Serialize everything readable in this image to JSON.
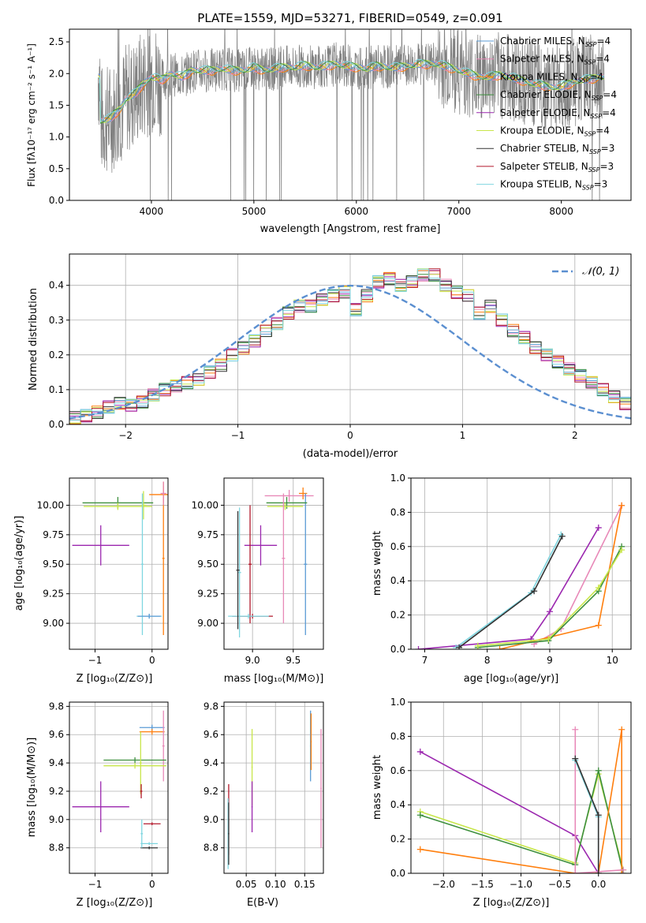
{
  "colors": {
    "chabrier_miles": "#5b9bd5",
    "salpeter_miles": "#e889b8",
    "kroupa_miles": "#ff7f0e",
    "chabrier_elodie": "#3d8f3d",
    "salpeter_elodie": "#9b27af",
    "kroupa_elodie": "#c8e64a",
    "chabrier_stelib": "#333333",
    "salpeter_stelib": "#b2182b",
    "kroupa_stelib": "#7fd6e0",
    "data": "#808080",
    "normal": "#5b8fd0",
    "grid": "#b0b0b0"
  },
  "chart_data": [
    {
      "id": "spectrum",
      "type": "line",
      "title": "PLATE=1559, MJD=53271, FIBERID=0549, z=0.091",
      "xlabel": "wavelength [Angstrom, rest frame]",
      "ylabel": "Flux [fλ10⁻¹⁷ erg cm⁻² s⁻¹ A⁻¹]",
      "xlim": [
        3200,
        8680
      ],
      "ylim": [
        0,
        2.7
      ],
      "xticks": [
        4000,
        5000,
        6000,
        7000,
        8000
      ],
      "yticks": [
        0.0,
        0.5,
        1.0,
        1.5,
        2.0,
        2.5
      ],
      "grid": false,
      "legend_position": "right",
      "legend": [
        {
          "label": "Chabrier MILES, N",
          "sub": "SSP",
          "eq": "=4",
          "color_key": "chabrier_miles"
        },
        {
          "label": "Salpeter MILES, N",
          "sub": "SSP",
          "eq": "=4",
          "color_key": "salpeter_miles"
        },
        {
          "label": "Kroupa MILES, N",
          "sub": "SSP",
          "eq": "=4",
          "color_key": "kroupa_miles"
        },
        {
          "label": "Chabrier ELODIE, N",
          "sub": "SSP",
          "eq": "=4",
          "color_key": "chabrier_elodie"
        },
        {
          "label": "Salpeter ELODIE, N",
          "sub": "SSP",
          "eq": "=4",
          "color_key": "salpeter_elodie"
        },
        {
          "label": "Kroupa ELODIE, N",
          "sub": "SSP",
          "eq": "=4",
          "color_key": "kroupa_elodie"
        },
        {
          "label": "Chabrier STELIB, N",
          "sub": "SSP",
          "eq": "=3",
          "color_key": "chabrier_stelib"
        },
        {
          "label": "Salpeter STELIB, N",
          "sub": "SSP",
          "eq": "=3",
          "color_key": "salpeter_stelib"
        },
        {
          "label": "Kroupa STELIB, N",
          "sub": "SSP",
          "eq": "=3",
          "color_key": "kroupa_stelib"
        }
      ],
      "model_continuum": [
        [
          3500,
          1.25
        ],
        [
          3600,
          1.3
        ],
        [
          3700,
          1.45
        ],
        [
          3750,
          1.6
        ],
        [
          3850,
          1.7
        ],
        [
          3900,
          1.8
        ],
        [
          4000,
          1.95
        ],
        [
          4100,
          1.9
        ],
        [
          4200,
          2.0
        ],
        [
          4300,
          1.95
        ],
        [
          4400,
          2.05
        ],
        [
          4500,
          2.05
        ],
        [
          4600,
          2.05
        ],
        [
          4700,
          2.08
        ],
        [
          4800,
          2.05
        ],
        [
          4900,
          2.05
        ],
        [
          5000,
          2.1
        ],
        [
          5100,
          2.05
        ],
        [
          5200,
          2.08
        ],
        [
          5300,
          2.1
        ],
        [
          5400,
          2.1
        ],
        [
          5500,
          2.13
        ],
        [
          5600,
          2.1
        ],
        [
          5700,
          2.12
        ],
        [
          5800,
          2.15
        ],
        [
          5900,
          2.12
        ],
        [
          6000,
          2.1
        ],
        [
          6100,
          2.08
        ],
        [
          6200,
          2.12
        ],
        [
          6300,
          2.1
        ],
        [
          6400,
          2.1
        ],
        [
          6500,
          2.12
        ],
        [
          6600,
          2.15
        ],
        [
          6700,
          2.15
        ],
        [
          6800,
          2.15
        ],
        [
          6900,
          2.1
        ],
        [
          7000,
          2.05
        ],
        [
          7100,
          2.0
        ],
        [
          7200,
          1.95
        ],
        [
          7300,
          1.95
        ],
        [
          7400,
          1.98
        ],
        [
          7500,
          1.95
        ],
        [
          7600,
          1.9
        ],
        [
          7700,
          1.85
        ],
        [
          7800,
          1.82
        ],
        [
          7900,
          1.78
        ],
        [
          8000,
          1.8
        ],
        [
          8100,
          1.85
        ],
        [
          8200,
          1.9
        ],
        [
          8300,
          1.92
        ],
        [
          8400,
          1.95
        ]
      ]
    },
    {
      "id": "residuals",
      "type": "bar",
      "xlabel": "(data-model)/error",
      "ylabel": "Normed distribution",
      "xlim": [
        -2.5,
        2.5
      ],
      "ylim": [
        0,
        0.49
      ],
      "xticks": [
        -2,
        -1,
        0,
        1,
        2
      ],
      "yticks": [
        0.0,
        0.1,
        0.2,
        0.3,
        0.4
      ],
      "grid": true,
      "legend_position": "top-right",
      "legend": [
        {
          "label": "𝒩(0, 1)",
          "color_key": "normal"
        }
      ],
      "bin_edges_start": -2.5,
      "bin_width": 0.1,
      "histogram": [
        0.02,
        0.025,
        0.035,
        0.05,
        0.06,
        0.055,
        0.065,
        0.085,
        0.1,
        0.11,
        0.12,
        0.13,
        0.15,
        0.17,
        0.2,
        0.22,
        0.24,
        0.27,
        0.29,
        0.32,
        0.34,
        0.34,
        0.36,
        0.37,
        0.38,
        0.33,
        0.37,
        0.41,
        0.42,
        0.4,
        0.41,
        0.43,
        0.43,
        0.4,
        0.38,
        0.37,
        0.32,
        0.34,
        0.3,
        0.27,
        0.25,
        0.22,
        0.2,
        0.18,
        0.16,
        0.14,
        0.12,
        0.1,
        0.08,
        0.06
      ]
    },
    {
      "id": "z-vs-age",
      "type": "scatter",
      "xlabel": "Z [log₁₀(Z/Z⊙)]",
      "ylabel": "age  [log₁₀(age/yr)]",
      "xlim": [
        -1.45,
        0.28
      ],
      "ylim": [
        8.78,
        10.23
      ],
      "xticks": [
        -1,
        0
      ],
      "yticks": [
        9.0,
        9.25,
        9.5,
        9.75,
        10.0
      ],
      "grid": true,
      "errorbars": [
        {
          "x": 0.2,
          "y": 10.09,
          "xerr": 0.25,
          "yerr": 0.07,
          "color_key": "kroupa_miles"
        },
        {
          "x": 0.2,
          "y": 9.55,
          "xerr": 0.02,
          "yerr": 0.65,
          "color_key": "kroupa_miles"
        },
        {
          "x": 0.2,
          "y": 10.1,
          "xerr": 0.05,
          "yerr": 0.1,
          "color_key": "salpeter_miles"
        },
        {
          "x": -0.6,
          "y": 10.02,
          "xerr": 0.62,
          "yerr": 0.05,
          "color_key": "chabrier_elodie"
        },
        {
          "x": -0.6,
          "y": 9.99,
          "xerr": 0.6,
          "yerr": 0.03,
          "color_key": "kroupa_elodie"
        },
        {
          "x": -0.15,
          "y": 10.0,
          "xerr": 0.05,
          "yerr": 0.12,
          "color_key": "kroupa_elodie"
        },
        {
          "x": -0.9,
          "y": 9.66,
          "xerr": 0.5,
          "yerr": 0.17,
          "color_key": "salpeter_elodie"
        },
        {
          "x": -0.17,
          "y": 9.5,
          "xerr": 0.02,
          "yerr": 0.6,
          "color_key": "kroupa_stelib"
        },
        {
          "x": -0.05,
          "y": 9.06,
          "xerr": 0.22,
          "yerr": 0.02,
          "color_key": "kroupa_stelib"
        },
        {
          "x": -0.05,
          "y": 9.06,
          "xerr": 0.2,
          "yerr": 0.02,
          "color_key": "chabrier_miles"
        }
      ]
    },
    {
      "id": "mass-vs-age",
      "type": "scatter",
      "xlabel": "mass [log₁₀(M/M⊙)]",
      "ylabel": "",
      "xlim": [
        8.65,
        9.87
      ],
      "ylim": [
        8.78,
        10.23
      ],
      "xticks": [
        9.0,
        9.5
      ],
      "yticks": [
        9.0,
        9.25,
        9.5,
        9.75,
        10.0
      ],
      "grid": true,
      "errorbars": [
        {
          "x": 9.45,
          "y": 10.08,
          "xerr": 0.3,
          "yerr": 0.05,
          "color_key": "salpeter_miles"
        },
        {
          "x": 9.62,
          "y": 10.1,
          "xerr": 0.05,
          "yerr": 0.05,
          "color_key": "kroupa_miles"
        },
        {
          "x": 9.65,
          "y": 9.5,
          "xerr": 0.02,
          "yerr": 0.6,
          "color_key": "chabrier_miles"
        },
        {
          "x": 9.42,
          "y": 10.02,
          "xerr": 0.25,
          "yerr": 0.05,
          "color_key": "chabrier_elodie"
        },
        {
          "x": 9.4,
          "y": 9.99,
          "xerr": 0.22,
          "yerr": 0.03,
          "color_key": "kroupa_elodie"
        },
        {
          "x": 9.38,
          "y": 9.55,
          "xerr": 0.02,
          "yerr": 0.55,
          "color_key": "salpeter_miles"
        },
        {
          "x": 9.1,
          "y": 9.66,
          "xerr": 0.2,
          "yerr": 0.17,
          "color_key": "salpeter_elodie"
        },
        {
          "x": 8.97,
          "y": 9.5,
          "xerr": 0.02,
          "yerr": 0.5,
          "color_key": "salpeter_stelib"
        },
        {
          "x": 9.0,
          "y": 9.06,
          "xerr": 0.25,
          "yerr": 0.02,
          "color_key": "salpeter_stelib"
        },
        {
          "x": 8.95,
          "y": 9.06,
          "xerr": 0.25,
          "yerr": 0.02,
          "color_key": "kroupa_stelib"
        },
        {
          "x": 8.84,
          "y": 9.43,
          "xerr": 0.02,
          "yerr": 0.55,
          "color_key": "kroupa_stelib"
        },
        {
          "x": 8.82,
          "y": 9.45,
          "xerr": 0.02,
          "yerr": 0.5,
          "color_key": "chabrier_stelib"
        }
      ]
    },
    {
      "id": "age-vs-massweight",
      "type": "line",
      "xlabel": "age  [log₁₀(age/yr)]",
      "ylabel": "mass weight",
      "xlim": [
        6.78,
        10.3
      ],
      "ylim": [
        0,
        1.0
      ],
      "xticks": [
        7,
        8,
        9,
        10
      ],
      "yticks": [
        0.0,
        0.2,
        0.4,
        0.6,
        0.8,
        1.0
      ],
      "grid": true,
      "series": [
        {
          "color_key": "salpeter_elodie",
          "x": [
            6.9,
            8.7,
            9.0,
            9.78
          ],
          "y": [
            0.0,
            0.06,
            0.22,
            0.71
          ]
        },
        {
          "color_key": "kroupa_stelib",
          "x": [
            7.5,
            8.7,
            9.18
          ],
          "y": [
            0.01,
            0.33,
            0.67
          ]
        },
        {
          "color_key": "chabrier_stelib",
          "x": [
            7.55,
            8.75,
            9.2
          ],
          "y": [
            0.01,
            0.34,
            0.66
          ]
        },
        {
          "color_key": "salpeter_miles",
          "x": [
            8.75,
            9.18,
            10.15
          ],
          "y": [
            0.03,
            0.12,
            0.84
          ]
        },
        {
          "color_key": "kroupa_miles",
          "x": [
            8.2,
            9.78,
            10.15
          ],
          "y": [
            0.0,
            0.14,
            0.84
          ]
        },
        {
          "color_key": "chabrier_elodie",
          "x": [
            7.85,
            8.98,
            9.78,
            10.15
          ],
          "y": [
            0.01,
            0.05,
            0.34,
            0.6
          ]
        },
        {
          "color_key": "kroupa_elodie",
          "x": [
            7.85,
            8.98,
            9.78,
            10.15
          ],
          "y": [
            0.02,
            0.06,
            0.36,
            0.58
          ]
        }
      ]
    },
    {
      "id": "z-vs-mass",
      "type": "scatter",
      "xlabel": "Z [log₁₀(Z/Z⊙)]",
      "ylabel": "mass [log₁₀(M/M⊙)]",
      "xlim": [
        -1.45,
        0.28
      ],
      "ylim": [
        8.62,
        9.83
      ],
      "xticks": [
        -1,
        0
      ],
      "yticks": [
        8.8,
        9.0,
        9.2,
        9.4,
        9.6,
        9.8
      ],
      "grid": true,
      "errorbars": [
        {
          "x": 0.0,
          "y": 9.65,
          "xerr": 0.22,
          "yerr": 0.02,
          "color_key": "chabrier_miles"
        },
        {
          "x": 0.0,
          "y": 9.62,
          "xerr": 0.22,
          "yerr": 0.02,
          "color_key": "kroupa_miles"
        },
        {
          "x": 0.2,
          "y": 9.52,
          "xerr": 0.02,
          "yerr": 0.25,
          "color_key": "salpeter_miles"
        },
        {
          "x": -0.3,
          "y": 9.42,
          "xerr": 0.55,
          "yerr": 0.02,
          "color_key": "chabrier_elodie"
        },
        {
          "x": -0.3,
          "y": 9.38,
          "xerr": 0.55,
          "yerr": 0.02,
          "color_key": "kroupa_elodie"
        },
        {
          "x": -0.2,
          "y": 9.4,
          "xerr": 0.02,
          "yerr": 0.22,
          "color_key": "kroupa_elodie"
        },
        {
          "x": -0.9,
          "y": 9.09,
          "xerr": 0.5,
          "yerr": 0.18,
          "color_key": "salpeter_elodie"
        },
        {
          "x": -0.19,
          "y": 9.2,
          "xerr": 0.02,
          "yerr": 0.05,
          "color_key": "salpeter_stelib"
        },
        {
          "x": 0.0,
          "y": 8.97,
          "xerr": 0.15,
          "yerr": 0.01,
          "color_key": "salpeter_stelib"
        },
        {
          "x": -0.05,
          "y": 8.83,
          "xerr": 0.15,
          "yerr": 0.01,
          "color_key": "kroupa_stelib"
        },
        {
          "x": -0.05,
          "y": 8.8,
          "xerr": 0.15,
          "yerr": 0.01,
          "color_key": "chabrier_stelib"
        },
        {
          "x": -0.18,
          "y": 8.9,
          "xerr": 0.02,
          "yerr": 0.1,
          "color_key": "kroupa_stelib"
        }
      ]
    },
    {
      "id": "ebv-vs-mass",
      "type": "scatter",
      "xlabel": "E(B-V)",
      "ylabel": "",
      "xlim": [
        0.012,
        0.182
      ],
      "ylim": [
        8.62,
        9.83
      ],
      "xticks": [
        0.05,
        0.1,
        0.15
      ],
      "yticks": [
        8.8,
        9.0,
        9.2,
        9.4,
        9.6,
        9.8
      ],
      "grid": true,
      "errorbars": [
        {
          "x": 0.16,
          "y": 9.52,
          "xerr": 0.001,
          "yerr": 0.25,
          "color_key": "chabrier_miles"
        },
        {
          "x": 0.161,
          "y": 9.55,
          "xerr": 0.001,
          "yerr": 0.2,
          "color_key": "kroupa_miles"
        },
        {
          "x": 0.178,
          "y": 9.22,
          "xerr": 0.001,
          "yerr": 0.42,
          "color_key": "salpeter_miles"
        },
        {
          "x": 0.06,
          "y": 9.37,
          "xerr": 0.001,
          "yerr": 0.27,
          "color_key": "kroupa_elodie"
        },
        {
          "x": 0.06,
          "y": 9.09,
          "xerr": 0.001,
          "yerr": 0.18,
          "color_key": "salpeter_elodie"
        },
        {
          "x": 0.02,
          "y": 9.0,
          "xerr": 0.001,
          "yerr": 0.25,
          "color_key": "salpeter_stelib"
        },
        {
          "x": 0.019,
          "y": 8.9,
          "xerr": 0.001,
          "yerr": 0.25,
          "color_key": "kroupa_stelib"
        },
        {
          "x": 0.02,
          "y": 8.9,
          "xerr": 0.001,
          "yerr": 0.22,
          "color_key": "chabrier_stelib"
        }
      ]
    },
    {
      "id": "z-vs-massweight",
      "type": "line",
      "xlabel": "Z [log₁₀(Z/Z⊙)]",
      "ylabel": "mass weight",
      "xlim": [
        -2.42,
        0.42
      ],
      "ylim": [
        0,
        1.0
      ],
      "xticks": [
        -2.0,
        -1.5,
        -1.0,
        -0.5,
        0.0
      ],
      "yticks": [
        0.0,
        0.2,
        0.4,
        0.6,
        0.8,
        1.0
      ],
      "grid": true,
      "series": [
        {
          "color_key": "salpeter_elodie",
          "x": [
            -2.3,
            -0.3,
            0.0
          ],
          "y": [
            0.71,
            0.22,
            0.0
          ]
        },
        {
          "color_key": "kroupa_elodie",
          "x": [
            -2.3,
            -0.3,
            0.0,
            0.32
          ],
          "y": [
            0.36,
            0.06,
            0.58,
            0.02
          ]
        },
        {
          "color_key": "chabrier_elodie",
          "x": [
            -2.3,
            -0.3,
            0.0,
            0.32
          ],
          "y": [
            0.34,
            0.05,
            0.6,
            0.0
          ]
        },
        {
          "color_key": "kroupa_miles",
          "x": [
            -2.3,
            -0.3,
            0.0,
            0.3,
            0.3
          ],
          "y": [
            0.14,
            0.0,
            0.0,
            0.84,
            0.0
          ]
        },
        {
          "color_key": "salpeter_miles",
          "x": [
            -0.3,
            -0.3,
            0.32
          ],
          "y": [
            0.84,
            0.0,
            0.02
          ]
        },
        {
          "color_key": "kroupa_stelib",
          "x": [
            -0.3,
            0.0,
            0.0
          ],
          "y": [
            0.66,
            0.33,
            0.0
          ]
        },
        {
          "color_key": "chabrier_stelib",
          "x": [
            -0.3,
            0.0,
            0.0
          ],
          "y": [
            0.67,
            0.34,
            0.0
          ]
        }
      ]
    }
  ]
}
